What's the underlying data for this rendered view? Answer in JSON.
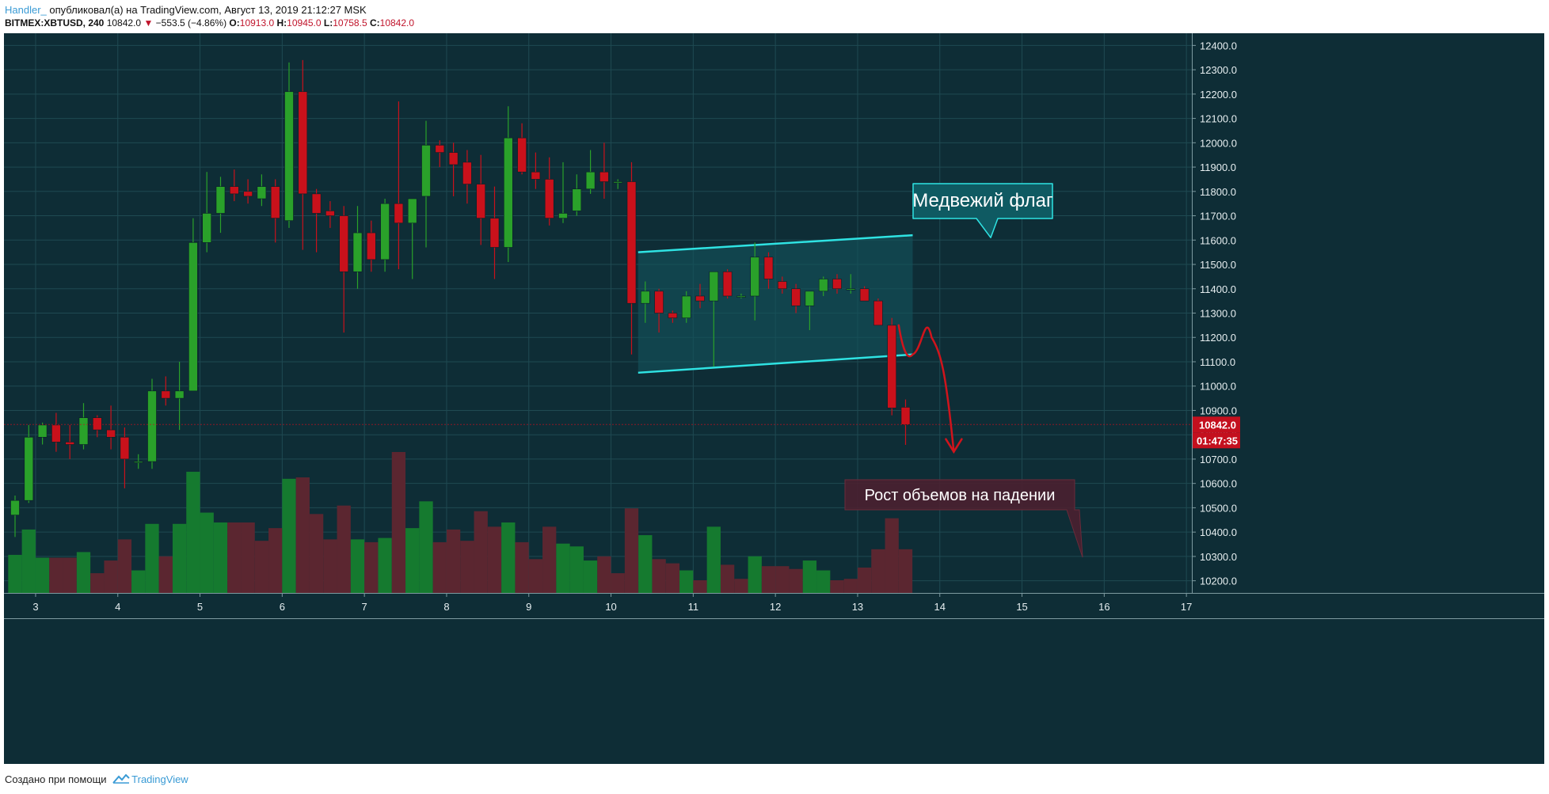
{
  "header": {
    "author": "Handler_",
    "published_text": " опубликовал(а) на TradingView.com, Август 13, 2019 21:12:27 MSK",
    "symbol": "BITMEX:XBTUSD, 240",
    "last": "10842.0",
    "change_arrow": "▼",
    "change": "−553.5 (−4.86%)",
    "o_label": "O:",
    "o_value": "10913.0",
    "h_label": "H:",
    "h_value": "10945.0",
    "l_label": "L:",
    "l_value": "10758.5",
    "c_label": "C:",
    "c_value": "10842.0"
  },
  "footer": {
    "prefix": "Создано при помощи",
    "brand": "TradingView"
  },
  "colors": {
    "background": "#0e2d36",
    "grid": "#1f4a52",
    "axis_text": "#e6eef0",
    "up": "#2aa12a",
    "down": "#c9111b",
    "vol_up": "#157a2f",
    "vol_down": "#5b2630",
    "flag_line": "#2fe3e3",
    "flag_fill": "#14525a",
    "annotation_red": "#d0141c",
    "price_label": "#c4101e"
  },
  "chart_data": {
    "type": "candlestick",
    "symbol": "BITMEX:XBTUSD",
    "timeframe": "240",
    "x_axis": {
      "labels": [
        "3",
        "4",
        "5",
        "6",
        "7",
        "8",
        "9",
        "10",
        "11",
        "12",
        "13",
        "14",
        "15",
        "16",
        "17"
      ]
    },
    "y_axis": {
      "range": [
        10150,
        12450
      ],
      "ticks": [
        10200,
        10300,
        10400,
        10500,
        10600,
        10700,
        10800,
        10900,
        11000,
        11100,
        11200,
        11300,
        11400,
        11500,
        11600,
        11700,
        11800,
        11900,
        12000,
        12100,
        12200,
        12300,
        12400
      ]
    },
    "grid": true,
    "candles": [
      {
        "o": 10470,
        "h": 10550,
        "l": 10380,
        "c": 10530
      },
      {
        "o": 10530,
        "h": 10840,
        "l": 10520,
        "c": 10790
      },
      {
        "o": 10790,
        "h": 10850,
        "l": 10760,
        "c": 10840
      },
      {
        "o": 10840,
        "h": 10890,
        "l": 10730,
        "c": 10770
      },
      {
        "o": 10770,
        "h": 10840,
        "l": 10700,
        "c": 10760
      },
      {
        "o": 10760,
        "h": 10930,
        "l": 10740,
        "c": 10870
      },
      {
        "o": 10870,
        "h": 10880,
        "l": 10790,
        "c": 10820
      },
      {
        "o": 10820,
        "h": 10920,
        "l": 10740,
        "c": 10790
      },
      {
        "o": 10790,
        "h": 10830,
        "l": 10580,
        "c": 10700
      },
      {
        "o": 10690,
        "h": 10720,
        "l": 10660,
        "c": 10690
      },
      {
        "o": 10690,
        "h": 11030,
        "l": 10660,
        "c": 10980
      },
      {
        "o": 10980,
        "h": 11040,
        "l": 10920,
        "c": 10950
      },
      {
        "o": 10950,
        "h": 11100,
        "l": 10820,
        "c": 10980
      },
      {
        "o": 10980,
        "h": 11690,
        "l": 10980,
        "c": 11590
      },
      {
        "o": 11590,
        "h": 11880,
        "l": 11550,
        "c": 11710
      },
      {
        "o": 11710,
        "h": 11860,
        "l": 11630,
        "c": 11820
      },
      {
        "o": 11820,
        "h": 11890,
        "l": 11760,
        "c": 11790
      },
      {
        "o": 11800,
        "h": 11850,
        "l": 11750,
        "c": 11780
      },
      {
        "o": 11770,
        "h": 11870,
        "l": 11740,
        "c": 11820
      },
      {
        "o": 11820,
        "h": 11850,
        "l": 11590,
        "c": 11690
      },
      {
        "o": 11680,
        "h": 12330,
        "l": 11650,
        "c": 12210
      },
      {
        "o": 12210,
        "h": 12340,
        "l": 11560,
        "c": 11790
      },
      {
        "o": 11790,
        "h": 11810,
        "l": 11550,
        "c": 11710
      },
      {
        "o": 11720,
        "h": 11760,
        "l": 11650,
        "c": 11700
      },
      {
        "o": 11700,
        "h": 11740,
        "l": 11220,
        "c": 11470
      },
      {
        "o": 11470,
        "h": 11740,
        "l": 11400,
        "c": 11630
      },
      {
        "o": 11630,
        "h": 11680,
        "l": 11470,
        "c": 11520
      },
      {
        "o": 11520,
        "h": 11770,
        "l": 11470,
        "c": 11750
      },
      {
        "o": 11750,
        "h": 12170,
        "l": 11480,
        "c": 11670
      },
      {
        "o": 11670,
        "h": 11770,
        "l": 11440,
        "c": 11770
      },
      {
        "o": 11780,
        "h": 12090,
        "l": 11570,
        "c": 11990
      },
      {
        "o": 11990,
        "h": 12010,
        "l": 11900,
        "c": 11960
      },
      {
        "o": 11960,
        "h": 12000,
        "l": 11780,
        "c": 11910
      },
      {
        "o": 11920,
        "h": 11970,
        "l": 11750,
        "c": 11830
      },
      {
        "o": 11830,
        "h": 11950,
        "l": 11580,
        "c": 11690
      },
      {
        "o": 11690,
        "h": 11820,
        "l": 11440,
        "c": 11570
      },
      {
        "o": 11570,
        "h": 12150,
        "l": 11510,
        "c": 12020
      },
      {
        "o": 12020,
        "h": 12080,
        "l": 11870,
        "c": 11880
      },
      {
        "o": 11880,
        "h": 11960,
        "l": 11810,
        "c": 11850
      },
      {
        "o": 11850,
        "h": 11940,
        "l": 11660,
        "c": 11690
      },
      {
        "o": 11690,
        "h": 11920,
        "l": 11670,
        "c": 11710
      },
      {
        "o": 11720,
        "h": 11870,
        "l": 11700,
        "c": 11810
      },
      {
        "o": 11810,
        "h": 11970,
        "l": 11790,
        "c": 11880
      },
      {
        "o": 11880,
        "h": 12000,
        "l": 11770,
        "c": 11840
      },
      {
        "o": 11840,
        "h": 11850,
        "l": 11810,
        "c": 11840
      },
      {
        "o": 11840,
        "h": 11920,
        "l": 11130,
        "c": 11340
      },
      {
        "o": 11340,
        "h": 11430,
        "l": 11260,
        "c": 11390
      },
      {
        "o": 11390,
        "h": 11400,
        "l": 11220,
        "c": 11300
      },
      {
        "o": 11300,
        "h": 11310,
        "l": 11260,
        "c": 11280
      },
      {
        "o": 11280,
        "h": 11390,
        "l": 11260,
        "c": 11370
      },
      {
        "o": 11370,
        "h": 11420,
        "l": 11320,
        "c": 11350
      },
      {
        "o": 11350,
        "h": 11470,
        "l": 11080,
        "c": 11470
      },
      {
        "o": 11470,
        "h": 11480,
        "l": 11360,
        "c": 11370
      },
      {
        "o": 11370,
        "h": 11380,
        "l": 11360,
        "c": 11370
      },
      {
        "o": 11370,
        "h": 11590,
        "l": 11270,
        "c": 11530
      },
      {
        "o": 11530,
        "h": 11550,
        "l": 11400,
        "c": 11440
      },
      {
        "o": 11430,
        "h": 11450,
        "l": 11380,
        "c": 11400
      },
      {
        "o": 11400,
        "h": 11420,
        "l": 11300,
        "c": 11330
      },
      {
        "o": 11330,
        "h": 11390,
        "l": 11230,
        "c": 11390
      },
      {
        "o": 11390,
        "h": 11450,
        "l": 11370,
        "c": 11440
      },
      {
        "o": 11440,
        "h": 11460,
        "l": 11380,
        "c": 11400
      },
      {
        "o": 11400,
        "h": 11460,
        "l": 11380,
        "c": 11400
      },
      {
        "o": 11400,
        "h": 11410,
        "l": 11350,
        "c": 11350
      },
      {
        "o": 11350,
        "h": 11360,
        "l": 11250,
        "c": 11250
      },
      {
        "o": 11250,
        "h": 11280,
        "l": 10880,
        "c": 10910
      },
      {
        "o": 10913,
        "h": 10945,
        "l": 10758.5,
        "c": 10842
      }
    ],
    "volume": [
      {
        "v": 0.27,
        "up": true
      },
      {
        "v": 0.45,
        "up": true
      },
      {
        "v": 0.25,
        "up": true
      },
      {
        "v": 0.25,
        "up": false
      },
      {
        "v": 0.25,
        "up": false
      },
      {
        "v": 0.29,
        "up": true
      },
      {
        "v": 0.14,
        "up": false
      },
      {
        "v": 0.23,
        "up": false
      },
      {
        "v": 0.38,
        "up": false
      },
      {
        "v": 0.16,
        "up": true
      },
      {
        "v": 0.49,
        "up": true
      },
      {
        "v": 0.26,
        "up": false
      },
      {
        "v": 0.49,
        "up": true
      },
      {
        "v": 0.86,
        "up": true
      },
      {
        "v": 0.57,
        "up": true
      },
      {
        "v": 0.5,
        "up": true
      },
      {
        "v": 0.5,
        "up": false
      },
      {
        "v": 0.5,
        "up": false
      },
      {
        "v": 0.37,
        "up": false
      },
      {
        "v": 0.46,
        "up": false
      },
      {
        "v": 0.81,
        "up": true
      },
      {
        "v": 0.82,
        "up": false
      },
      {
        "v": 0.56,
        "up": false
      },
      {
        "v": 0.38,
        "up": false
      },
      {
        "v": 0.62,
        "up": false
      },
      {
        "v": 0.38,
        "up": true
      },
      {
        "v": 0.36,
        "up": false
      },
      {
        "v": 0.39,
        "up": true
      },
      {
        "v": 1.0,
        "up": false
      },
      {
        "v": 0.46,
        "up": true
      },
      {
        "v": 0.65,
        "up": true
      },
      {
        "v": 0.36,
        "up": false
      },
      {
        "v": 0.45,
        "up": false
      },
      {
        "v": 0.37,
        "up": false
      },
      {
        "v": 0.58,
        "up": false
      },
      {
        "v": 0.47,
        "up": false
      },
      {
        "v": 0.5,
        "up": true
      },
      {
        "v": 0.36,
        "up": false
      },
      {
        "v": 0.24,
        "up": false
      },
      {
        "v": 0.47,
        "up": false
      },
      {
        "v": 0.35,
        "up": true
      },
      {
        "v": 0.33,
        "up": true
      },
      {
        "v": 0.23,
        "up": true
      },
      {
        "v": 0.26,
        "up": false
      },
      {
        "v": 0.14,
        "up": false
      },
      {
        "v": 0.6,
        "up": false
      },
      {
        "v": 0.41,
        "up": true
      },
      {
        "v": 0.24,
        "up": false
      },
      {
        "v": 0.21,
        "up": false
      },
      {
        "v": 0.16,
        "up": true
      },
      {
        "v": 0.09,
        "up": false
      },
      {
        "v": 0.47,
        "up": true
      },
      {
        "v": 0.2,
        "up": false
      },
      {
        "v": 0.1,
        "up": false
      },
      {
        "v": 0.26,
        "up": true
      },
      {
        "v": 0.19,
        "up": false
      },
      {
        "v": 0.19,
        "up": false
      },
      {
        "v": 0.17,
        "up": false
      },
      {
        "v": 0.23,
        "up": true
      },
      {
        "v": 0.16,
        "up": true
      },
      {
        "v": 0.09,
        "up": false
      },
      {
        "v": 0.1,
        "up": false
      },
      {
        "v": 0.18,
        "up": false
      },
      {
        "v": 0.31,
        "up": false
      },
      {
        "v": 0.53,
        "up": false
      },
      {
        "v": 0.31,
        "up": false
      }
    ],
    "flag": {
      "label": "Медвежий флаг",
      "top_line": {
        "from": {
          "x": 10.33,
          "y": 11550
        },
        "to": {
          "x": 13.67,
          "y": 11620
        }
      },
      "bottom_line": {
        "from": {
          "x": 10.33,
          "y": 11055
        },
        "to": {
          "x": 13.67,
          "y": 11130
        }
      }
    },
    "volume_callout": {
      "label": "Рост объемов на падении"
    },
    "projection": [
      {
        "x": 13.5,
        "y": 11250
      },
      {
        "x": 13.67,
        "y": 11130
      },
      {
        "x": 13.9,
        "y": 11200
      },
      {
        "x": 14.07,
        "y": 11000
      },
      {
        "x": 14.17,
        "y": 10730
      }
    ],
    "last_price_label": "10842.0",
    "countdown_label": "01:47:35"
  }
}
